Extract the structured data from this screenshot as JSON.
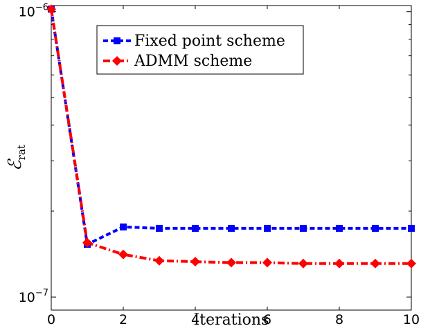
{
  "chart_data": {
    "type": "line",
    "xlabel": "Iterations",
    "ylabel": "ℰ",
    "ylabel_sub": "rat",
    "xlim": [
      0,
      10
    ],
    "ylim": [
      9e-08,
      1.05e-06
    ],
    "yscale": "log",
    "grid": false,
    "legend_position": "top-right",
    "x_ticks": [
      0,
      2,
      4,
      6,
      8,
      10
    ],
    "x_tick_labels": [
      "0",
      "2",
      "4",
      "6",
      "8",
      "10"
    ],
    "y_ticks": [
      1e-07,
      1e-06
    ],
    "y_tick_labels": [
      {
        "base": "10",
        "exp": "−7"
      },
      {
        "base": "10",
        "exp": "−6"
      }
    ],
    "x": [
      0,
      1,
      2,
      3,
      4,
      5,
      6,
      7,
      8,
      9,
      10
    ],
    "series": [
      {
        "name": "Fixed point scheme",
        "color": "#0000ff",
        "marker": "square",
        "dash": "dashed",
        "values": [
          1.02e-06,
          1.53e-07,
          1.76e-07,
          1.74e-07,
          1.74e-07,
          1.74e-07,
          1.74e-07,
          1.74e-07,
          1.74e-07,
          1.74e-07,
          1.74e-07
        ]
      },
      {
        "name": "ADMM scheme",
        "color": "#ff0000",
        "marker": "diamond",
        "dash": "dashdot",
        "values": [
          1.02e-06,
          1.55e-07,
          1.41e-07,
          1.34e-07,
          1.33e-07,
          1.32e-07,
          1.32e-07,
          1.31e-07,
          1.31e-07,
          1.31e-07,
          1.31e-07
        ]
      }
    ]
  }
}
